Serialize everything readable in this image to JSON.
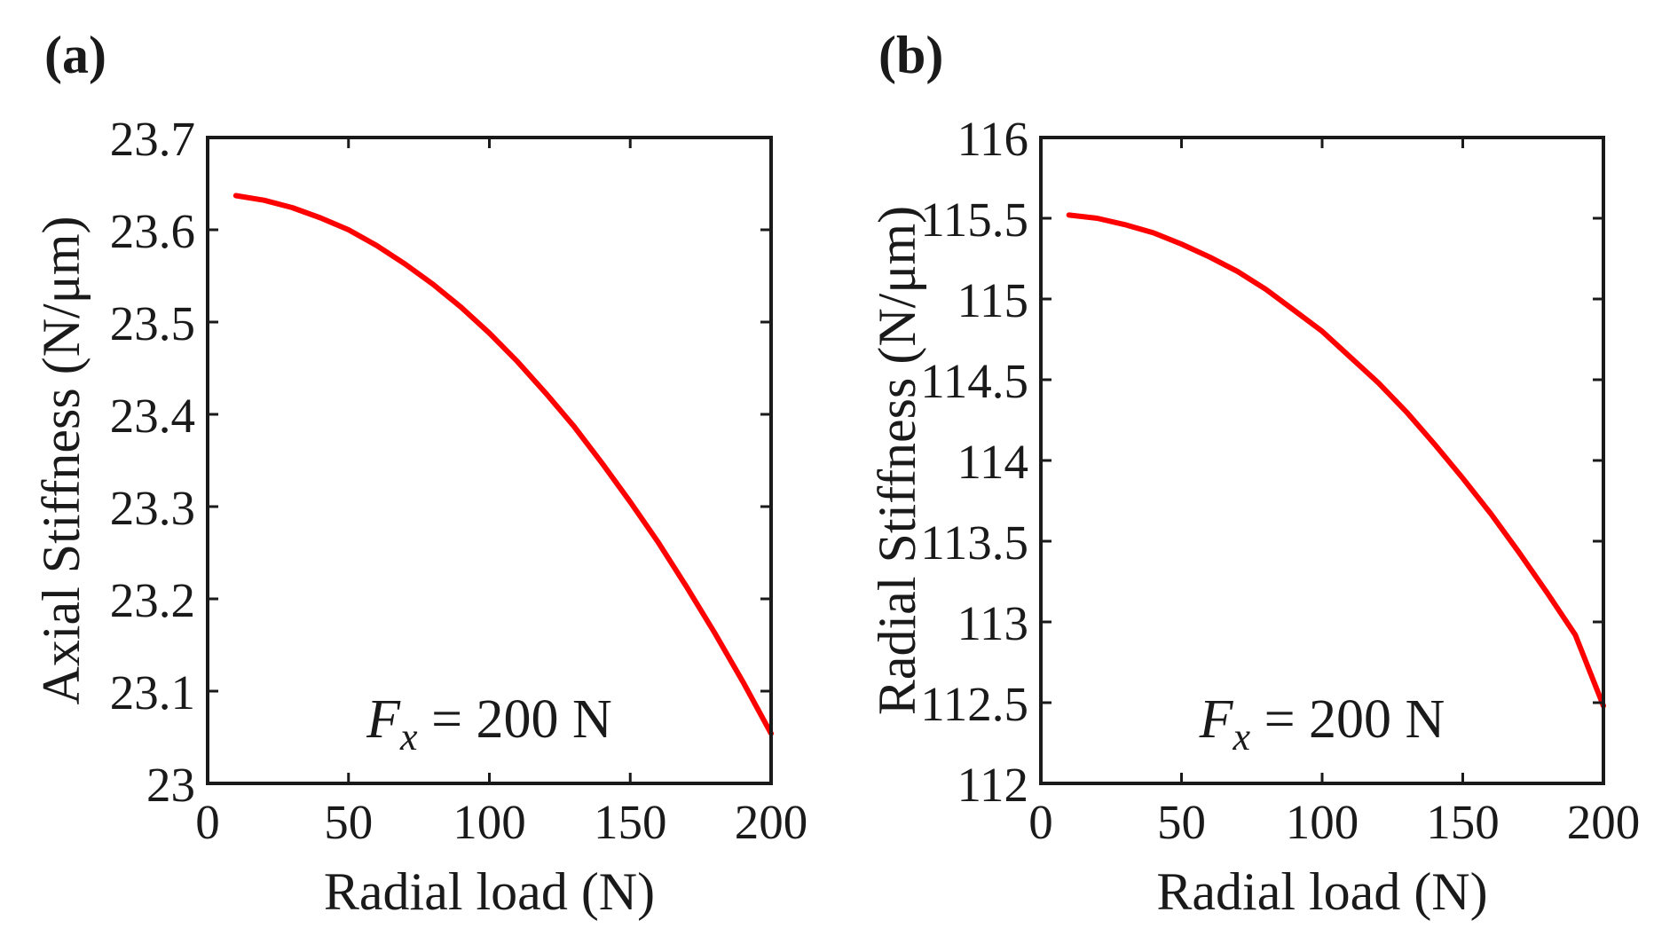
{
  "chart_data": [
    {
      "type": "line",
      "panel_label": "(a)",
      "xlabel": "Radial load (N)",
      "ylabel": "Axial Stiffness (N/μm)",
      "xlim": [
        0,
        200
      ],
      "ylim": [
        23,
        23.7
      ],
      "xticks": [
        0,
        50,
        100,
        150,
        200
      ],
      "xtick_labels": [
        "0",
        "50",
        "100",
        "150",
        "200"
      ],
      "yticks": [
        23,
        23.1,
        23.2,
        23.3,
        23.4,
        23.5,
        23.6,
        23.7
      ],
      "ytick_labels": [
        "23",
        "23.1",
        "23.2",
        "23.3",
        "23.4",
        "23.5",
        "23.6",
        "23.7"
      ],
      "annotation": {
        "var": "F",
        "sub": "x",
        "rest": " = 200 N"
      },
      "series": [
        {
          "name": "Axial stiffness",
          "color": "#ff0000",
          "x": [
            10,
            20,
            30,
            40,
            50,
            60,
            70,
            80,
            90,
            100,
            110,
            120,
            130,
            140,
            150,
            160,
            170,
            180,
            190,
            200
          ],
          "y": [
            23.637,
            23.632,
            23.624,
            23.613,
            23.6,
            23.583,
            23.563,
            23.541,
            23.516,
            23.488,
            23.457,
            23.423,
            23.387,
            23.347,
            23.305,
            23.261,
            23.213,
            23.163,
            23.11,
            23.054
          ]
        }
      ]
    },
    {
      "type": "line",
      "panel_label": "(b)",
      "xlabel": "Radial load (N)",
      "ylabel": "Radial Stiffness (N/μm)",
      "xlim": [
        0,
        200
      ],
      "ylim": [
        112,
        116
      ],
      "xticks": [
        0,
        50,
        100,
        150,
        200
      ],
      "xtick_labels": [
        "0",
        "50",
        "100",
        "150",
        "200"
      ],
      "yticks": [
        112,
        112.5,
        113,
        113.5,
        114,
        114.5,
        115,
        115.5,
        116
      ],
      "ytick_labels": [
        "112",
        "112.5",
        "113",
        "113.5",
        "114",
        "114.5",
        "115",
        "115.5",
        "116"
      ],
      "annotation": {
        "var": "F",
        "sub": "x",
        "rest": " = 200 N"
      },
      "series": [
        {
          "name": "Radial stiffness",
          "color": "#ff0000",
          "x": [
            10,
            20,
            30,
            40,
            50,
            60,
            70,
            80,
            90,
            100,
            110,
            120,
            130,
            140,
            150,
            160,
            170,
            180,
            190,
            200
          ],
          "y": [
            115.52,
            115.5,
            115.46,
            115.41,
            115.34,
            115.26,
            115.17,
            115.06,
            114.93,
            114.8,
            114.64,
            114.48,
            114.3,
            114.1,
            113.89,
            113.67,
            113.43,
            113.18,
            112.92,
            112.48
          ]
        }
      ]
    }
  ]
}
